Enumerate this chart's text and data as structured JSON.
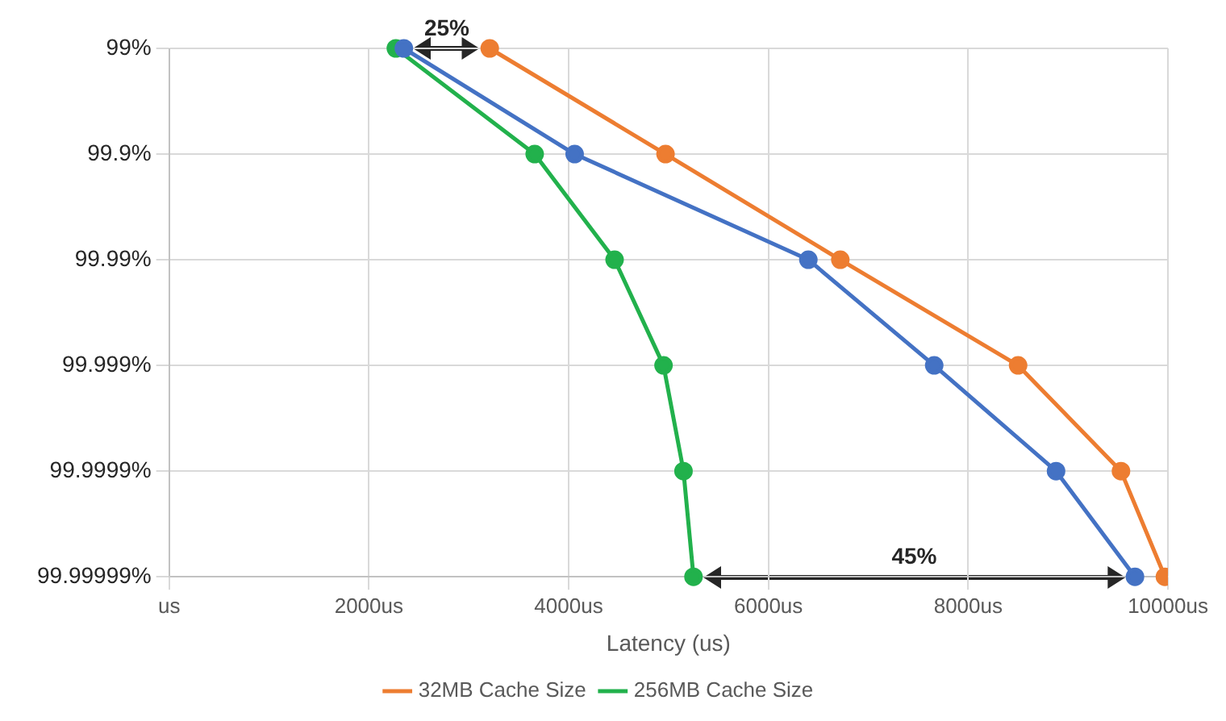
{
  "chart_data": {
    "type": "line",
    "orientation": "horizontal",
    "xlabel": "Latency (us)",
    "xlim": [
      0,
      10000
    ],
    "xticks": [
      {
        "value": 0,
        "label": "us"
      },
      {
        "value": 2000,
        "label": "2000us"
      },
      {
        "value": 4000,
        "label": "4000us"
      },
      {
        "value": 6000,
        "label": "6000us"
      },
      {
        "value": 8000,
        "label": "8000us"
      },
      {
        "value": 10000,
        "label": "10000us"
      }
    ],
    "categories": [
      "99%",
      "99.9%",
      "99.99%",
      "99.999%",
      "99.9999%",
      "99.99999%"
    ],
    "series": [
      {
        "color": "#4472c4",
        "values": [
          2350,
          4060,
          6400,
          7660,
          8880,
          9670
        ]
      },
      {
        "name": "32MB Cache Size",
        "color": "#ed7d31",
        "values": [
          3210,
          4970,
          6720,
          8500,
          9530,
          9970
        ]
      },
      {
        "name": "256MB Cache Size",
        "color": "#22b14c",
        "values": [
          2270,
          3660,
          4460,
          4950,
          5150,
          5250
        ]
      }
    ],
    "annotations": [
      "25%",
      "45%"
    ],
    "grid": true,
    "legend": "bottom",
    "marker": "circle",
    "line_style": "solid"
  }
}
